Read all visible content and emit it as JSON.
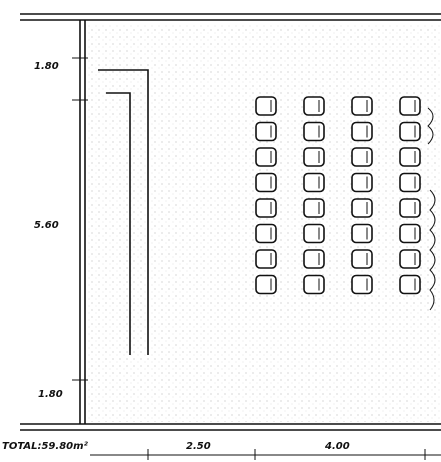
{
  "dimensions": {
    "left": [
      "1.80",
      "5.60",
      "1.80"
    ],
    "bottom": [
      "2.50",
      "4.00"
    ]
  },
  "total": "TOTAL:59.80m²"
}
